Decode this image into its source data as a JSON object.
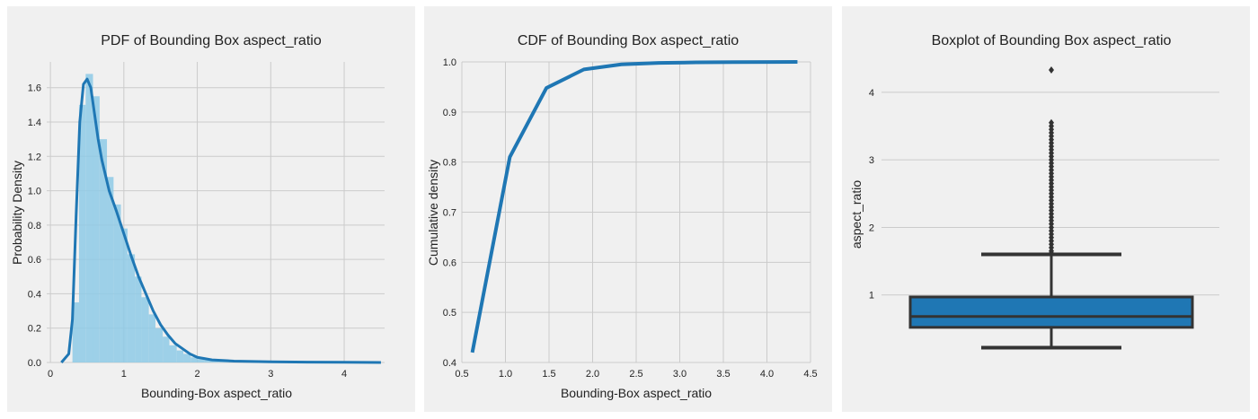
{
  "chart_data": [
    {
      "type": "area",
      "title": "PDF of Bounding Box aspect_ratio",
      "xlabel": "Bounding-Box aspect_ratio",
      "ylabel": "Probability Density",
      "xlim": [
        -0.05,
        4.55
      ],
      "ylim": [
        0,
        1.75
      ],
      "xticks": [
        0,
        1,
        2,
        3,
        4
      ],
      "yticks": [
        0.0,
        0.2,
        0.4,
        0.6,
        0.8,
        1.0,
        1.2,
        1.4,
        1.6
      ],
      "grid": true,
      "series": [
        {
          "kind": "histogram",
          "bins": [
            [
              0.3,
              0.39,
              0.35
            ],
            [
              0.39,
              0.48,
              1.5
            ],
            [
              0.48,
              0.58,
              1.68
            ],
            [
              0.58,
              0.67,
              1.55
            ],
            [
              0.67,
              0.77,
              1.3
            ],
            [
              0.77,
              0.86,
              1.08
            ],
            [
              0.86,
              0.96,
              0.92
            ],
            [
              0.96,
              1.05,
              0.78
            ],
            [
              1.05,
              1.15,
              0.63
            ],
            [
              1.15,
              1.24,
              0.5
            ],
            [
              1.24,
              1.34,
              0.38
            ],
            [
              1.34,
              1.43,
              0.28
            ],
            [
              1.43,
              1.53,
              0.2
            ],
            [
              1.53,
              1.62,
              0.15
            ],
            [
              1.62,
              1.72,
              0.1
            ],
            [
              1.72,
              1.81,
              0.07
            ],
            [
              1.81,
              1.91,
              0.05
            ],
            [
              1.91,
              2.0,
              0.03
            ],
            [
              2.0,
              2.1,
              0.02
            ],
            [
              2.1,
              2.19,
              0.015
            ],
            [
              2.19,
              2.29,
              0.01
            ],
            [
              2.29,
              2.5,
              0.008
            ],
            [
              2.5,
              3.0,
              0.004
            ],
            [
              3.0,
              3.6,
              0.002
            ],
            [
              3.6,
              4.4,
              0.001
            ]
          ],
          "color": "#8ecae6"
        },
        {
          "kind": "kde",
          "x": [
            0.15,
            0.25,
            0.3,
            0.35,
            0.4,
            0.45,
            0.5,
            0.55,
            0.6,
            0.65,
            0.7,
            0.8,
            0.9,
            1.0,
            1.1,
            1.2,
            1.3,
            1.4,
            1.5,
            1.6,
            1.7,
            1.8,
            1.9,
            2.0,
            2.2,
            2.5,
            3.0,
            3.5,
            4.0,
            4.5
          ],
          "y": [
            0.0,
            0.05,
            0.25,
            0.85,
            1.4,
            1.62,
            1.65,
            1.6,
            1.45,
            1.3,
            1.18,
            1.0,
            0.88,
            0.75,
            0.62,
            0.5,
            0.4,
            0.3,
            0.22,
            0.16,
            0.11,
            0.08,
            0.05,
            0.03,
            0.015,
            0.008,
            0.004,
            0.002,
            0.001,
            0.0
          ],
          "color": "#1f77b4"
        }
      ]
    },
    {
      "type": "line",
      "title": "CDF of Bounding Box aspect_ratio",
      "xlabel": "Bounding-Box aspect_ratio",
      "ylabel": "Cumulative density",
      "xlim": [
        0.5,
        4.5
      ],
      "ylim": [
        0.4,
        1.0
      ],
      "xticks": [
        0.5,
        1.0,
        1.5,
        2.0,
        2.5,
        3.0,
        3.5,
        4.0,
        4.5
      ],
      "xtick_labels": [
        "0.5",
        "1.0",
        "1.5",
        "2.0",
        "2.5",
        "3.0",
        "3.5",
        "4.0",
        "4.5"
      ],
      "yticks": [
        0.4,
        0.5,
        0.6,
        0.7,
        0.8,
        0.9,
        1.0
      ],
      "ytick_labels": [
        "0.4",
        "0.5",
        "0.6",
        "0.7",
        "0.8",
        "0.9",
        "1.0"
      ],
      "grid": true,
      "series": [
        {
          "x": [
            0.62,
            1.05,
            1.47,
            1.9,
            2.33,
            2.76,
            3.19,
            3.62,
            4.05,
            4.35
          ],
          "y": [
            0.42,
            0.81,
            0.948,
            0.985,
            0.995,
            0.998,
            0.999,
            0.9995,
            0.9998,
            1.0
          ],
          "color": "#1f77b4"
        }
      ]
    },
    {
      "type": "box",
      "title": "Boxplot of Bounding Box aspect_ratio",
      "xlabel": "",
      "ylabel": "aspect_ratio",
      "ylim": [
        0,
        4.45
      ],
      "yticks": [
        1,
        2,
        3,
        4
      ],
      "grid": true,
      "box": {
        "whisker_low": 0.22,
        "q1": 0.52,
        "median": 0.68,
        "q3": 0.97,
        "whisker_high": 1.6,
        "color": "#1f77b4"
      },
      "outliers": [
        1.62,
        1.65,
        1.7,
        1.75,
        1.8,
        1.85,
        1.9,
        1.95,
        2.0,
        2.05,
        2.1,
        2.15,
        2.2,
        2.25,
        2.3,
        2.35,
        2.4,
        2.45,
        2.5,
        2.55,
        2.6,
        2.65,
        2.7,
        2.75,
        2.8,
        2.85,
        2.9,
        2.95,
        3.0,
        3.05,
        3.1,
        3.15,
        3.2,
        3.25,
        3.3,
        3.35,
        3.4,
        3.45,
        3.5,
        3.55,
        4.33
      ]
    }
  ]
}
